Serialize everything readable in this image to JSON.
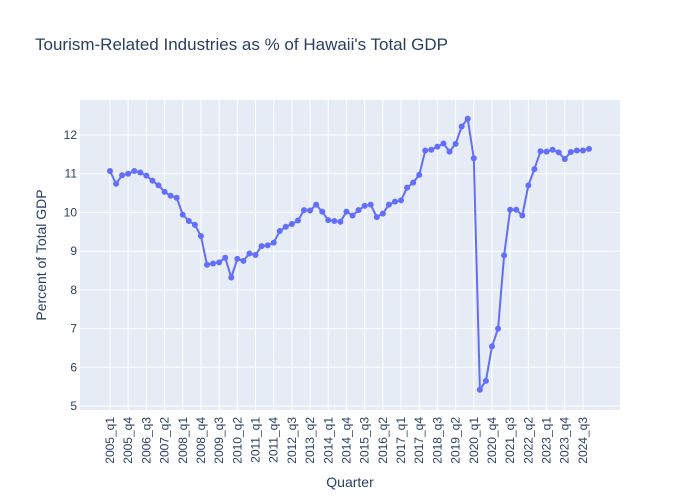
{
  "chart_data": {
    "type": "line",
    "title": "Tourism-Related Industries as % of Hawaii's Total GDP",
    "xlabel": "Quarter",
    "ylabel": "Percent of Total GDP",
    "ylim": [
      5,
      12.8
    ],
    "yticks": [
      5,
      6,
      7,
      8,
      9,
      10,
      11,
      12
    ],
    "grid": true,
    "legend": "none",
    "colors": {
      "line": "#636efa",
      "plot_bg": "#e5ecf6",
      "grid": "#ffffff",
      "text": "#2a3f5f"
    },
    "x_tick_labels": [
      "2005_q1",
      "2005_q4",
      "2006_q3",
      "2007_q2",
      "2008_q1",
      "2008_q4",
      "2009_q3",
      "2010_q2",
      "2011_q1",
      "2011_q4",
      "2012_q3",
      "2013_q2",
      "2014_q1",
      "2014_q4",
      "2015_q3",
      "2016_q2",
      "2017_q1",
      "2017_q4",
      "2018_q3",
      "2019_q2",
      "2020_q1",
      "2020_q4",
      "2021_q3",
      "2022_q2",
      "2023_q1",
      "2023_q4",
      "2024_q3"
    ],
    "categories": [
      "2005_q1",
      "2005_q2",
      "2005_q3",
      "2005_q4",
      "2006_q1",
      "2006_q2",
      "2006_q3",
      "2006_q4",
      "2007_q1",
      "2007_q2",
      "2007_q3",
      "2007_q4",
      "2008_q1",
      "2008_q2",
      "2008_q3",
      "2008_q4",
      "2009_q1",
      "2009_q2",
      "2009_q3",
      "2009_q4",
      "2010_q1",
      "2010_q2",
      "2010_q3",
      "2010_q4",
      "2011_q1",
      "2011_q2",
      "2011_q3",
      "2011_q4",
      "2012_q1",
      "2012_q2",
      "2012_q3",
      "2012_q4",
      "2013_q1",
      "2013_q2",
      "2013_q3",
      "2013_q4",
      "2014_q1",
      "2014_q2",
      "2014_q3",
      "2014_q4",
      "2015_q1",
      "2015_q2",
      "2015_q3",
      "2015_q4",
      "2016_q1",
      "2016_q2",
      "2016_q3",
      "2016_q4",
      "2017_q1",
      "2017_q2",
      "2017_q3",
      "2017_q4",
      "2018_q1",
      "2018_q2",
      "2018_q3",
      "2018_q4",
      "2019_q1",
      "2019_q2",
      "2019_q3",
      "2019_q4",
      "2020_q1",
      "2020_q2",
      "2020_q3",
      "2020_q4",
      "2021_q1",
      "2021_q2",
      "2021_q3",
      "2021_q4",
      "2022_q1",
      "2022_q2",
      "2022_q3",
      "2022_q4",
      "2023_q1",
      "2023_q2",
      "2023_q3",
      "2023_q4",
      "2024_q1",
      "2024_q2",
      "2024_q3",
      "2024_q4"
    ],
    "series": [
      {
        "values": [
          11.07,
          10.74,
          10.96,
          11.0,
          11.07,
          11.03,
          10.95,
          10.82,
          10.7,
          10.53,
          10.43,
          10.38,
          9.94,
          9.78,
          9.68,
          9.39,
          8.65,
          8.68,
          8.71,
          8.83,
          8.32,
          8.8,
          8.75,
          8.94,
          8.9,
          9.13,
          9.15,
          9.22,
          9.52,
          9.63,
          9.7,
          9.79,
          10.06,
          10.05,
          10.2,
          10.02,
          9.8,
          9.78,
          9.76,
          10.02,
          9.92,
          10.06,
          10.17,
          10.2,
          9.88,
          9.97,
          10.2,
          10.28,
          10.31,
          10.64,
          10.77,
          10.97,
          11.6,
          11.62,
          11.7,
          11.78,
          11.57,
          11.77,
          12.22,
          12.42,
          11.4,
          5.42,
          5.65,
          6.54,
          7.0,
          8.89,
          10.07,
          10.07,
          9.92,
          10.7,
          11.12,
          11.58,
          11.57,
          11.62,
          11.55,
          11.38,
          11.56,
          11.6,
          11.6,
          11.64
        ]
      }
    ]
  }
}
